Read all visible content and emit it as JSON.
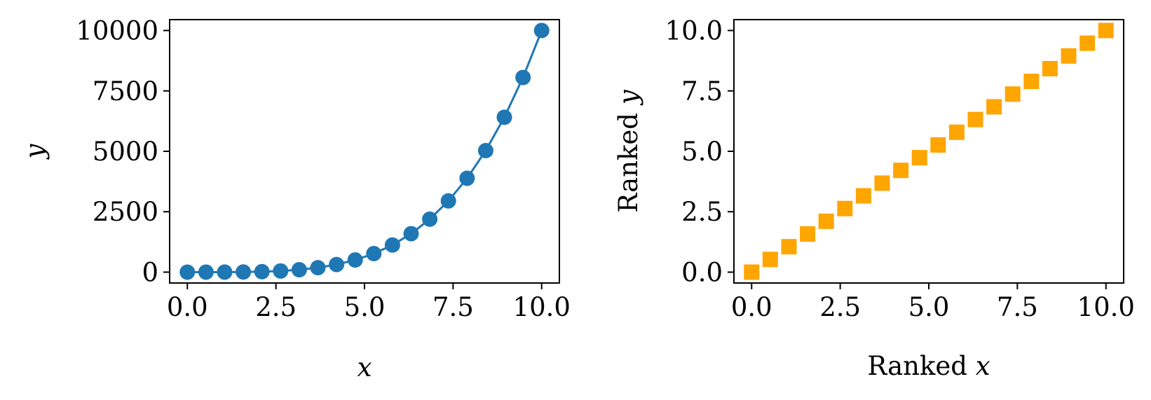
{
  "chart_data": [
    {
      "type": "line",
      "xlabel": "x",
      "ylabel": "y",
      "xlim": [
        -0.5,
        10.5
      ],
      "ylim": [
        -450,
        10450
      ],
      "xticks": [
        0,
        2.5,
        5,
        7.5,
        10
      ],
      "xtick_labels": [
        "0.0",
        "2.5",
        "5.0",
        "7.5",
        "10.0"
      ],
      "yticks": [
        0,
        2500,
        5000,
        7500,
        10000
      ],
      "ytick_labels": [
        "0",
        "2500",
        "5000",
        "7500",
        "10000"
      ],
      "grid": false,
      "color": "#1f77b4",
      "marker": "circle",
      "series": [
        {
          "x": [
            0,
            0.526,
            1.053,
            1.579,
            2.105,
            2.632,
            3.158,
            3.684,
            4.211,
            4.737,
            5.263,
            5.789,
            6.316,
            6.842,
            7.368,
            7.895,
            8.421,
            8.947,
            9.474,
            10
          ],
          "y": [
            0,
            0.1,
            1.2,
            6.2,
            19.6,
            48,
            99.5,
            184,
            314,
            504,
            767,
            1123,
            1591,
            2192,
            2948,
            3884,
            5029,
            6409,
            8056,
            10000
          ]
        }
      ]
    },
    {
      "type": "scatter",
      "xlabel_prefix": "Ranked",
      "xlabel_var": "x",
      "ylabel_prefix": "Ranked",
      "ylabel_var": "y",
      "xlim": [
        -0.5,
        10.5
      ],
      "ylim": [
        -0.45,
        10.45
      ],
      "xticks": [
        0,
        2.5,
        5,
        7.5,
        10
      ],
      "xtick_labels": [
        "0.0",
        "2.5",
        "5.0",
        "7.5",
        "10.0"
      ],
      "yticks": [
        0,
        2.5,
        5,
        7.5,
        10
      ],
      "ytick_labels": [
        "0.0",
        "2.5",
        "5.0",
        "7.5",
        "10.0"
      ],
      "grid": false,
      "color": "#ffa500",
      "marker": "square",
      "series": [
        {
          "x": [
            0,
            0.526,
            1.053,
            1.579,
            2.105,
            2.632,
            3.158,
            3.684,
            4.211,
            4.737,
            5.263,
            5.789,
            6.316,
            6.842,
            7.368,
            7.895,
            8.421,
            8.947,
            9.474,
            10
          ],
          "y": [
            0,
            0.526,
            1.053,
            1.579,
            2.105,
            2.632,
            3.158,
            3.684,
            4.211,
            4.737,
            5.263,
            5.789,
            6.316,
            6.842,
            7.368,
            7.895,
            8.421,
            8.947,
            9.474,
            10
          ]
        }
      ]
    }
  ]
}
